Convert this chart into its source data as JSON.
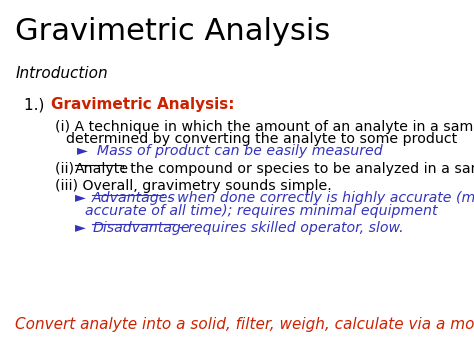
{
  "title": "Gravimetric Analysis",
  "title_fontsize": 22,
  "title_color": "#000000",
  "bg_color": "#ffffff",
  "intro_text": "Introduction",
  "intro_color": "#000000",
  "intro_fontsize": 11,
  "item1_num": "1.)   ",
  "item1_bold": "Gravimetric Analysis:",
  "item1_color": "#cc2200",
  "item1_fontsize": 11,
  "blue_color": "#3333bb",
  "red_color": "#cc2200",
  "footer_text": "Convert analyte into a solid, filter, weigh, calculate via a mole map",
  "footer_color": "#cc2200",
  "footer_fontsize": 11
}
